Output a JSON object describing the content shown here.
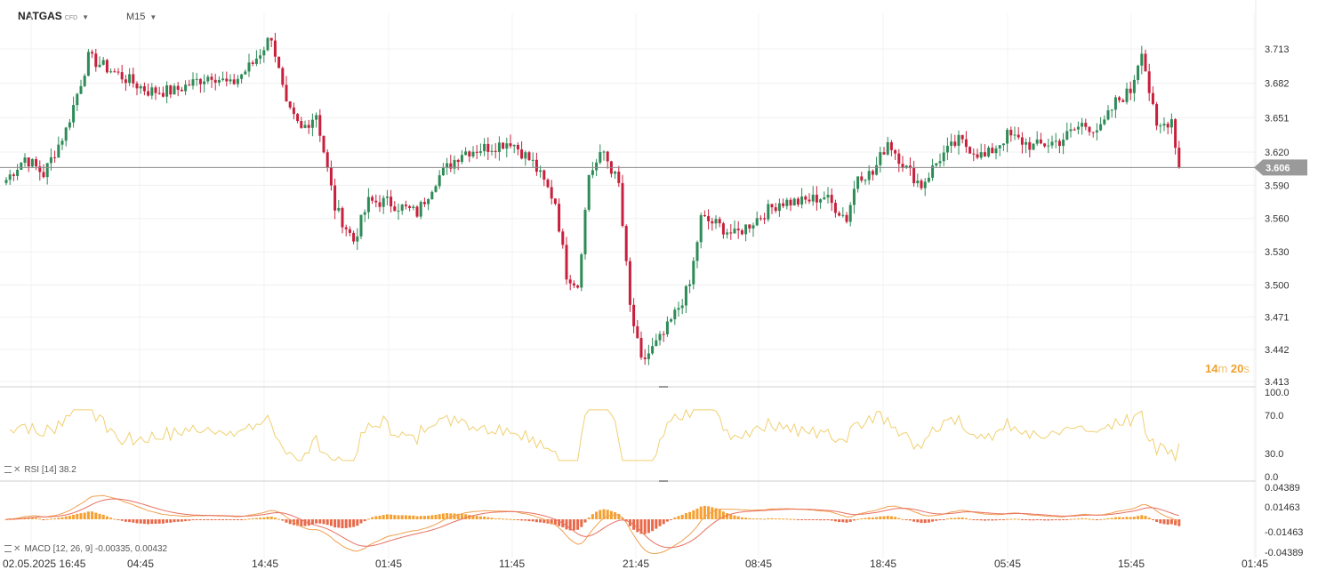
{
  "header": {
    "symbol": "NATGAS",
    "type": "CFD",
    "timeframe": "M15"
  },
  "countdown": {
    "min": "14",
    "min_unit": "m",
    "sec": "20",
    "sec_unit": "s"
  },
  "price_axis": [
    "3.713",
    "3.682",
    "3.651",
    "3.620",
    "3.590",
    "3.560",
    "3.530",
    "3.500",
    "3.471",
    "3.442",
    "3.413"
  ],
  "current_price": "3.606",
  "rsi": {
    "label": "RSI",
    "params": "[14]",
    "value": "38.2",
    "axis": [
      "100.0",
      "70.0",
      "30.0",
      "0.0"
    ]
  },
  "macd": {
    "label": "MACD",
    "params": "[12,  26,  9]",
    "values": "-0.00335,  0.00432",
    "axis": [
      "0.04389",
      "0.01463",
      "-0.01463",
      "-0.04389"
    ]
  },
  "time_axis": [
    "02.05.2025  16:45",
    "04:45",
    "14:45",
    "01:45",
    "11:45",
    "21:45",
    "08:45",
    "18:45",
    "05:45",
    "15:45",
    "01:45"
  ],
  "colors": {
    "up": "#2e8b57",
    "down": "#c8203c",
    "rsi": "#f0d070",
    "macd_line": "#f0a050",
    "signal": "#e87060",
    "hist_pos": "#f5a030",
    "hist_neg": "#e86a4a",
    "price_tag": "#9a9a9a"
  },
  "chart_data": {
    "type": "candlestick",
    "price_range": [
      3.413,
      3.73
    ],
    "close_anchors": [
      [
        0,
        3.595
      ],
      [
        5,
        3.615
      ],
      [
        10,
        3.6
      ],
      [
        16,
        3.64
      ],
      [
        22,
        3.705
      ],
      [
        30,
        3.69
      ],
      [
        38,
        3.675
      ],
      [
        45,
        3.675
      ],
      [
        55,
        3.69
      ],
      [
        60,
        3.68
      ],
      [
        66,
        3.7
      ],
      [
        71,
        3.725
      ],
      [
        75,
        3.66
      ],
      [
        79,
        3.64
      ],
      [
        83,
        3.655
      ],
      [
        88,
        3.57
      ],
      [
        93,
        3.54
      ],
      [
        97,
        3.575
      ],
      [
        102,
        3.575
      ],
      [
        110,
        3.565
      ],
      [
        115,
        3.595
      ],
      [
        122,
        3.62
      ],
      [
        130,
        3.625
      ],
      [
        135,
        3.63
      ],
      [
        141,
        3.61
      ],
      [
        147,
        3.575
      ],
      [
        150,
        3.51
      ],
      [
        153,
        3.5
      ],
      [
        156,
        3.6
      ],
      [
        160,
        3.62
      ],
      [
        164,
        3.59
      ],
      [
        167,
        3.48
      ],
      [
        170,
        3.43
      ],
      [
        176,
        3.455
      ],
      [
        180,
        3.48
      ],
      [
        183,
        3.5
      ],
      [
        186,
        3.56
      ],
      [
        190,
        3.555
      ],
      [
        195,
        3.545
      ],
      [
        201,
        3.56
      ],
      [
        207,
        3.575
      ],
      [
        213,
        3.575
      ],
      [
        219,
        3.58
      ],
      [
        225,
        3.56
      ],
      [
        228,
        3.6
      ],
      [
        232,
        3.6
      ],
      [
        236,
        3.63
      ],
      [
        241,
        3.605
      ],
      [
        245,
        3.59
      ],
      [
        250,
        3.615
      ],
      [
        255,
        3.63
      ],
      [
        262,
        3.615
      ],
      [
        268,
        3.635
      ],
      [
        275,
        3.625
      ],
      [
        282,
        3.63
      ],
      [
        288,
        3.645
      ],
      [
        293,
        3.64
      ],
      [
        297,
        3.665
      ],
      [
        301,
        3.675
      ],
      [
        304,
        3.714
      ],
      [
        306,
        3.675
      ],
      [
        308,
        3.64
      ],
      [
        312,
        3.65
      ],
      [
        314,
        3.606
      ]
    ],
    "rsi_last": 38.2,
    "macd_last": -0.00335,
    "signal_last": 0.00432
  }
}
